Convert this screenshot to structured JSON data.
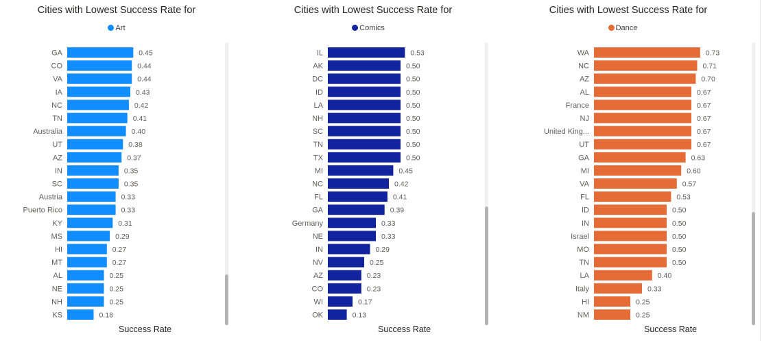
{
  "chart_data": [
    {
      "type": "bar",
      "orientation": "horizontal",
      "title": "Cities with Lowest Success Rate for",
      "legend": "Art",
      "color": "#118DFF",
      "xlabel": "Success Rate",
      "xlim": [
        0,
        0.75
      ],
      "categories": [
        "GA",
        "CO",
        "VA",
        "IA",
        "NC",
        "TN",
        "Australia",
        "UT",
        "AZ",
        "IN",
        "SC",
        "Austria",
        "Puerto Rico",
        "KY",
        "MS",
        "HI",
        "MT",
        "AL",
        "NE",
        "NH",
        "KS"
      ],
      "values": [
        0.45,
        0.44,
        0.44,
        0.43,
        0.42,
        0.41,
        0.4,
        0.38,
        0.37,
        0.35,
        0.35,
        0.33,
        0.33,
        0.31,
        0.29,
        0.27,
        0.27,
        0.25,
        0.25,
        0.25,
        0.18
      ],
      "labels": [
        "0.45",
        "0.44",
        "0.44",
        "0.43",
        "0.42",
        "0.41",
        "0.40",
        "0.38",
        "0.37",
        "0.35",
        "0.35",
        "0.33",
        "0.33",
        "0.31",
        "0.29",
        "0.27",
        "0.27",
        "0.25",
        "0.25",
        "0.25",
        "0.18"
      ]
    },
    {
      "type": "bar",
      "orientation": "horizontal",
      "title": "Cities with Lowest Success Rate for",
      "legend": "Comics",
      "color": "#12239E",
      "xlabel": "Success Rate",
      "xlim": [
        0,
        0.75
      ],
      "categories": [
        "IL",
        "AK",
        "DC",
        "ID",
        "LA",
        "NH",
        "SC",
        "TN",
        "TX",
        "MI",
        "NC",
        "FL",
        "GA",
        "Germany",
        "NE",
        "IN",
        "NV",
        "AZ",
        "CO",
        "WI",
        "OK"
      ],
      "values": [
        0.53,
        0.5,
        0.5,
        0.5,
        0.5,
        0.5,
        0.5,
        0.5,
        0.5,
        0.45,
        0.42,
        0.41,
        0.39,
        0.33,
        0.33,
        0.29,
        0.25,
        0.23,
        0.23,
        0.17,
        0.13
      ],
      "labels": [
        "0.53",
        "0.50",
        "0.50",
        "0.50",
        "0.50",
        "0.50",
        "0.50",
        "0.50",
        "0.50",
        "0.45",
        "0.42",
        "0.41",
        "0.39",
        "0.33",
        "0.33",
        "0.29",
        "0.25",
        "0.23",
        "0.23",
        "0.17",
        "0.13"
      ]
    },
    {
      "type": "bar",
      "orientation": "horizontal",
      "title": "Cities with Lowest Success Rate for",
      "legend": "Dance",
      "color": "#E66C37",
      "xlabel": "Success Rate",
      "xlim": [
        0,
        0.75
      ],
      "categories": [
        "WA",
        "NC",
        "AZ",
        "AL",
        "France",
        "NJ",
        "United King...",
        "UT",
        "GA",
        "MI",
        "VA",
        "FL",
        "ID",
        "IN",
        "Israel",
        "MO",
        "TN",
        "LA",
        "Italy",
        "HI",
        "NM"
      ],
      "values": [
        0.73,
        0.71,
        0.7,
        0.67,
        0.67,
        0.67,
        0.67,
        0.67,
        0.63,
        0.6,
        0.57,
        0.53,
        0.5,
        0.5,
        0.5,
        0.5,
        0.5,
        0.4,
        0.33,
        0.25,
        0.25
      ],
      "labels": [
        "0.73",
        "0.71",
        "0.70",
        "0.67",
        "0.67",
        "0.67",
        "0.67",
        "0.67",
        "0.63",
        "0.60",
        "0.57",
        "0.53",
        "0.50",
        "0.50",
        "0.50",
        "0.50",
        "0.50",
        "0.40",
        "0.33",
        "0.25",
        "0.25"
      ]
    }
  ],
  "scrollbars": [
    {
      "thumb_start": 0.82,
      "thumb_end": 1.0
    },
    {
      "thumb_start": 0.58,
      "thumb_end": 1.0
    },
    {
      "thumb_start": 0.6,
      "thumb_end": 1.0
    }
  ]
}
